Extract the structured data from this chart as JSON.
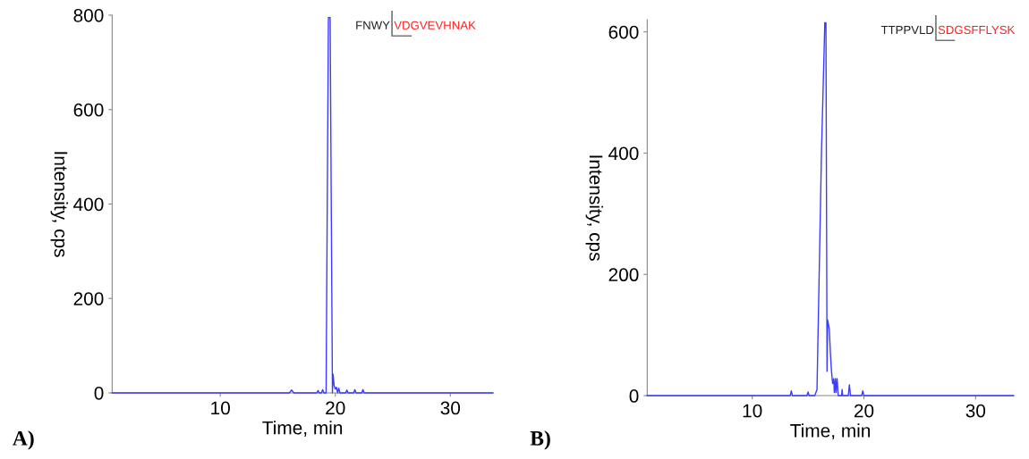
{
  "chart_data": [
    {
      "type": "line",
      "title": "A)",
      "xlabel": "Time, min",
      "ylabel": "Intensity, cps",
      "annotations": [
        "FNWY",
        "VDGVEVHNAK"
      ],
      "series": [
        {
          "color": "#3b3bff",
          "x": [
            0.6,
            16.0,
            16.2,
            16.4,
            18.4,
            18.5,
            18.6,
            18.8,
            18.9,
            19.0,
            19.2,
            19.4,
            19.55,
            19.75,
            19.8,
            19.9,
            20.0,
            20.1,
            20.2,
            20.3,
            20.4,
            20.9,
            21.0,
            21.1,
            21.6,
            21.7,
            21.8,
            22.3,
            22.4,
            22.5,
            33.7
          ],
          "values": [
            0,
            0,
            6,
            0,
            0,
            5,
            0,
            0,
            7,
            0,
            0,
            795,
            795,
            0,
            40,
            15,
            8,
            12,
            0,
            10,
            0,
            0,
            6,
            0,
            0,
            7,
            0,
            0,
            7,
            0,
            0
          ]
        }
      ],
      "xlim": [
        0.6,
        33.7
      ],
      "xticks": [
        10,
        20,
        30
      ],
      "ylim": [
        0,
        800
      ],
      "yticks": [
        0,
        200,
        400,
        600,
        800
      ],
      "grid": false,
      "legend": false,
      "marker": "none",
      "line_style": "solid"
    },
    {
      "type": "line",
      "title": "B)",
      "xlabel": "Time, min",
      "ylabel": "Intensity, cps",
      "annotations": [
        "TTPPVLD",
        "SDGSFFLYSK"
      ],
      "series": [
        {
          "color": "#3b3bff",
          "x": [
            0.6,
            13.4,
            13.5,
            13.6,
            14.9,
            15.0,
            15.1,
            15.6,
            15.8,
            16.2,
            16.5,
            16.6,
            16.7,
            16.75,
            16.9,
            17.0,
            17.1,
            17.2,
            17.3,
            17.35,
            17.45,
            17.5,
            17.6,
            17.7,
            18.0,
            18.05,
            18.1,
            18.6,
            18.7,
            18.8,
            19.8,
            19.9,
            20.0,
            33.4
          ],
          "values": [
            0,
            0,
            8,
            0,
            0,
            6,
            0,
            0,
            10,
            400,
            615,
            615,
            40,
            125,
            110,
            70,
            40,
            20,
            28,
            5,
            28,
            5,
            28,
            0,
            0,
            10,
            0,
            0,
            18,
            0,
            0,
            8,
            0,
            0
          ]
        }
      ],
      "xlim": [
        0.6,
        33.4
      ],
      "xticks": [
        10,
        20,
        30
      ],
      "ylim": [
        0,
        620
      ],
      "yticks": [
        0,
        200,
        400,
        600
      ],
      "grid": false,
      "legend": false,
      "marker": "none",
      "line_style": "solid"
    }
  ]
}
